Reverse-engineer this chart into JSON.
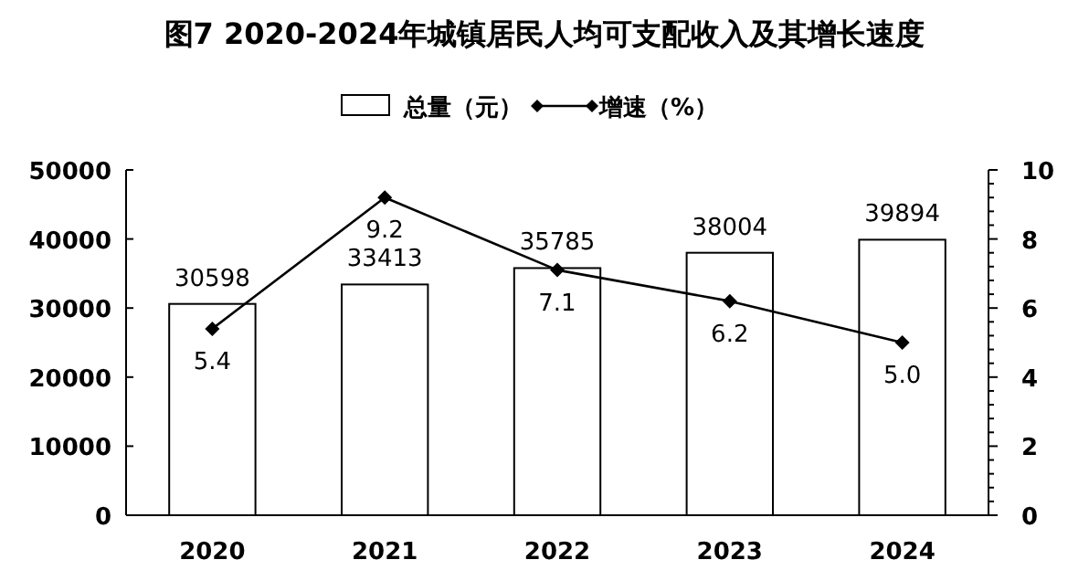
{
  "chart_data": {
    "type": "bar",
    "title": "图7 2020-2024年城镇居民人均可支配收入及其增长速度",
    "categories": [
      "2020",
      "2021",
      "2022",
      "2023",
      "2024"
    ],
    "series": [
      {
        "name": "总量（元）",
        "color": "#ffffff",
        "values": [
          30598,
          33413,
          35785,
          38004,
          39894
        ]
      },
      {
        "name": "增速（%）",
        "type": "line",
        "axis": "y2",
        "color": "#000000",
        "marker": "diamond",
        "values": [
          5.4,
          9.2,
          7.1,
          6.2,
          5.0
        ],
        "value_labels": [
          "5.4",
          "9.2",
          "7.1",
          "6.2",
          "5.0"
        ]
      }
    ],
    "ylim": [
      0,
      50000
    ],
    "yticks": [
      0,
      10000,
      20000,
      30000,
      40000,
      50000
    ],
    "y2lim": [
      0,
      10
    ],
    "y2ticks": [
      0,
      {
        "value": 0.4,
        "label": null
      },
      {
        "value": 0.8,
        "label": null
      },
      {
        "value": 1.2,
        "label": null
      },
      {
        "value": 1.6,
        "label": null
      },
      2,
      {
        "value": 2.4,
        "label": null
      },
      {
        "value": 2.8,
        "label": null
      },
      {
        "value": 3.2,
        "label": null
      },
      {
        "value": 3.6,
        "label": null
      },
      4,
      {
        "value": 4.4,
        "label": null
      },
      {
        "value": 4.8,
        "label": null
      },
      {
        "value": 5.2,
        "label": null
      },
      {
        "value": 5.6,
        "label": null
      },
      6,
      {
        "value": 6.4,
        "label": null
      },
      {
        "value": 6.8,
        "label": null
      },
      {
        "value": 7.2,
        "label": null
      },
      {
        "value": 7.6,
        "label": null
      },
      8,
      {
        "value": 8.4,
        "label": null
      },
      {
        "value": 8.8,
        "label": null
      },
      {
        "value": 9.2,
        "label": null
      },
      {
        "value": 9.6,
        "label": null
      },
      10
    ],
    "data_labels": true,
    "legend": "top",
    "grid": false
  }
}
